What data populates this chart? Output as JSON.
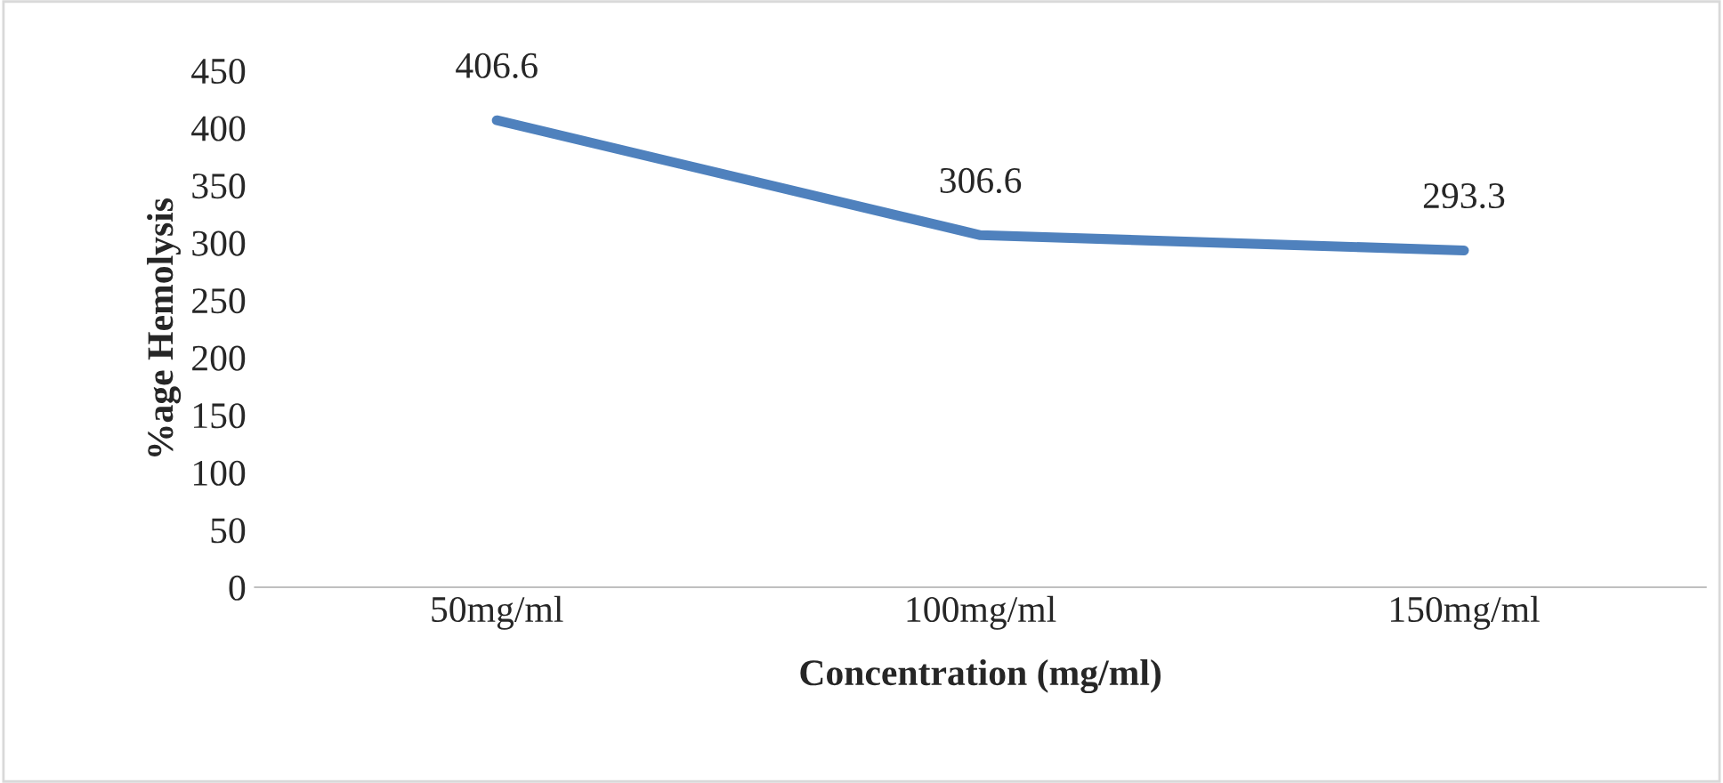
{
  "chart_data": {
    "type": "line",
    "xlabel": "Concentration (mg/ml)",
    "ylabel": "%age Hemolysis",
    "categories": [
      "50mg/ml",
      "100mg/ml",
      "150mg/ml"
    ],
    "series": [
      {
        "color": "#4f81bd",
        "values": [
          406.6,
          306.6,
          293.3
        ]
      }
    ],
    "ylim": [
      0,
      450
    ],
    "yticks": [
      0,
      50,
      100,
      150,
      200,
      250,
      300,
      350,
      400,
      450
    ],
    "data_labels": true,
    "grid": false,
    "legend": false,
    "marker": "none",
    "line_style": "solid"
  }
}
